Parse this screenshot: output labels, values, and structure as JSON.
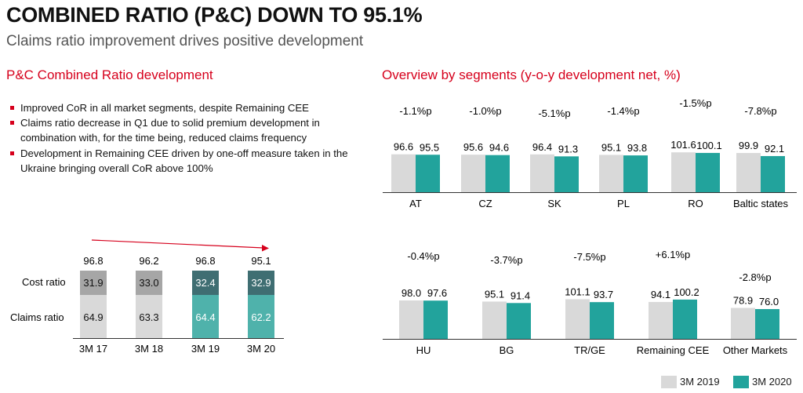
{
  "header": {
    "title": "COMBINED RATIO (P&C) DOWN TO 95.1%",
    "subtitle": "Claims ratio improvement drives positive development"
  },
  "left": {
    "section_title": "P&C Combined Ratio development",
    "bullets": [
      "Improved CoR in all market segments, despite Remaining CEE",
      "Claims ratio decrease in Q1 due to solid premium development in combination with, for the time being, reduced claims frequency",
      "Development in Remaining CEE driven by one-off measure taken in the Ukraine bringing overall CoR above 100%"
    ]
  },
  "right": {
    "section_title": "Overview by segments (y-o-y development net, %)"
  },
  "legend": {
    "items": [
      {
        "label": "3M 2019",
        "color": "#d9d9d9"
      },
      {
        "label": "3M 2020",
        "color": "#22a39c"
      }
    ]
  },
  "colors": {
    "prior_year": "#d9d9d9",
    "current_year": "#22a39c",
    "cost_grey": "#a6a6a6",
    "claims_grey": "#d9d9d9",
    "cost_teal": "#3f6e72",
    "claims_teal": "#4fb2ab",
    "accent_red": "#d6001c"
  },
  "chart_data": [
    {
      "type": "bar",
      "stacked": true,
      "categories": [
        "3M 17",
        "3M 18",
        "3M 19",
        "3M 20"
      ],
      "series": [
        {
          "name": "Cost ratio",
          "values": [
            31.9,
            33.0,
            32.4,
            32.9
          ]
        },
        {
          "name": "Claims ratio",
          "values": [
            64.9,
            63.3,
            64.4,
            62.2
          ]
        }
      ],
      "totals": [
        96.8,
        96.2,
        96.8,
        95.1
      ],
      "trend_arrow": "downward"
    },
    {
      "type": "bar",
      "categories": [
        "AT",
        "CZ",
        "SK",
        "PL",
        "RO",
        "Baltic states"
      ],
      "series": [
        {
          "name": "3M 2019",
          "values": [
            96.6,
            95.6,
            96.4,
            95.1,
            101.6,
            99.9
          ]
        },
        {
          "name": "3M 2020",
          "values": [
            95.5,
            94.6,
            91.3,
            93.8,
            100.1,
            92.1
          ]
        }
      ],
      "deltas": [
        "-1.1%p",
        "-1.0%p",
        "-5.1%p",
        "-1.4%p",
        "-1.5%p",
        "-7.8%p"
      ]
    },
    {
      "type": "bar",
      "categories": [
        "HU",
        "BG",
        "TR/GE",
        "Remaining CEE",
        "Other Markets"
      ],
      "series": [
        {
          "name": "3M 2019",
          "values": [
            98.0,
            95.1,
            101.1,
            94.1,
            78.9
          ]
        },
        {
          "name": "3M 2020",
          "values": [
            97.6,
            91.4,
            93.7,
            100.2,
            76.0
          ]
        }
      ],
      "deltas": [
        "-0.4%p",
        "-3.7%p",
        "-7.5%p",
        "+6.1%p",
        "-2.8%p"
      ]
    }
  ]
}
